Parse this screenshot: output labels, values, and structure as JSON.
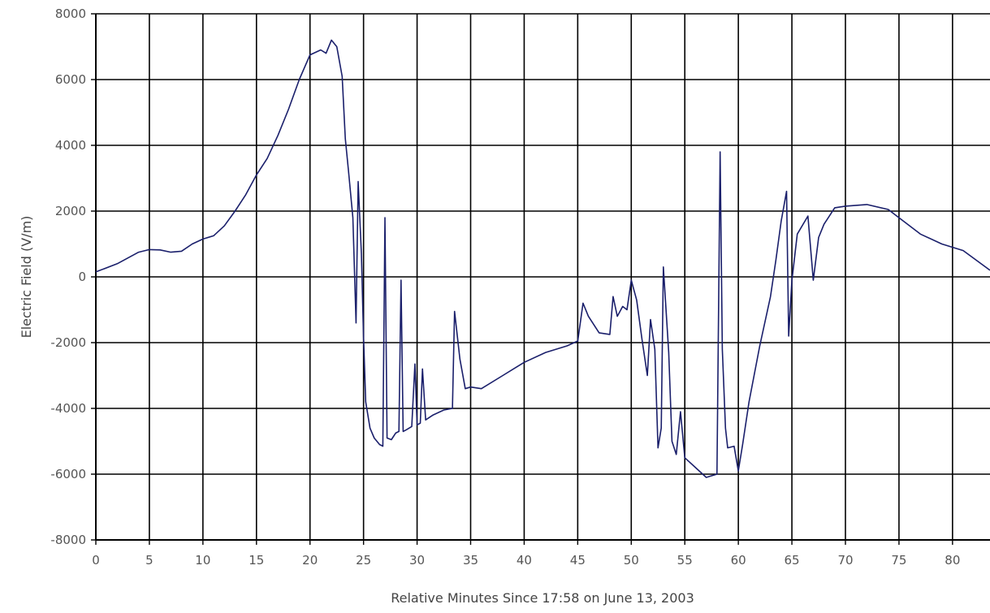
{
  "chart_data": {
    "type": "line",
    "title": "",
    "xlabel": "Relative Minutes Since 17:58 on June 13, 2003",
    "ylabel": "Electric Field (V/m)",
    "xlim": [
      0,
      83.5
    ],
    "ylim": [
      -8000,
      8000
    ],
    "x_ticks": [
      "0",
      "5",
      "10",
      "15",
      "20",
      "25",
      "30",
      "35",
      "40",
      "45",
      "50",
      "55",
      "60",
      "65",
      "70",
      "75",
      "80"
    ],
    "y_ticks": [
      "8000",
      "6000",
      "4000",
      "2000",
      "0",
      "-2000",
      "-4000",
      "-6000",
      "-8000"
    ],
    "grid": true,
    "line_color": "#1a1f6b",
    "series": [
      {
        "points": [
          [
            0,
            150
          ],
          [
            2,
            400
          ],
          [
            4,
            750
          ],
          [
            5,
            830
          ],
          [
            6,
            820
          ],
          [
            7,
            750
          ],
          [
            8,
            780
          ],
          [
            9,
            1000
          ],
          [
            10,
            1150
          ],
          [
            11,
            1250
          ],
          [
            12,
            1550
          ],
          [
            13,
            2000
          ],
          [
            14,
            2500
          ],
          [
            15,
            3100
          ],
          [
            16,
            3600
          ],
          [
            17,
            4300
          ],
          [
            18,
            5100
          ],
          [
            19,
            6000
          ],
          [
            20,
            6750
          ],
          [
            21,
            6900
          ],
          [
            21.5,
            6800
          ],
          [
            22,
            7200
          ],
          [
            22.5,
            7000
          ],
          [
            23,
            6100
          ],
          [
            23.3,
            4200
          ],
          [
            23.6,
            3200
          ],
          [
            24,
            1800
          ],
          [
            24.3,
            -1400
          ],
          [
            24.5,
            2900
          ],
          [
            24.8,
            700
          ],
          [
            25,
            -1800
          ],
          [
            25.2,
            -3800
          ],
          [
            25.6,
            -4600
          ],
          [
            26,
            -4900
          ],
          [
            26.5,
            -5100
          ],
          [
            26.8,
            -5150
          ],
          [
            27,
            1800
          ],
          [
            27.2,
            -4900
          ],
          [
            27.6,
            -4950
          ],
          [
            28,
            -4750
          ],
          [
            28.3,
            -4700
          ],
          [
            28.5,
            -100
          ],
          [
            28.7,
            -4700
          ],
          [
            29,
            -4650
          ],
          [
            29.5,
            -4550
          ],
          [
            29.8,
            -2650
          ],
          [
            30,
            -4500
          ],
          [
            30.3,
            -4450
          ],
          [
            30.5,
            -2800
          ],
          [
            30.8,
            -4350
          ],
          [
            31.5,
            -4200
          ],
          [
            32.5,
            -4050
          ],
          [
            33.3,
            -4000
          ],
          [
            33.5,
            -1050
          ],
          [
            34,
            -2500
          ],
          [
            34.5,
            -3400
          ],
          [
            35,
            -3350
          ],
          [
            36,
            -3400
          ],
          [
            38,
            -3000
          ],
          [
            40,
            -2600
          ],
          [
            42,
            -2300
          ],
          [
            44,
            -2100
          ],
          [
            45,
            -1950
          ],
          [
            45.5,
            -800
          ],
          [
            46,
            -1200
          ],
          [
            47,
            -1700
          ],
          [
            48,
            -1750
          ],
          [
            48.3,
            -600
          ],
          [
            48.7,
            -1200
          ],
          [
            49.2,
            -900
          ],
          [
            49.6,
            -1000
          ],
          [
            50,
            -100
          ],
          [
            50.5,
            -700
          ],
          [
            51,
            -1900
          ],
          [
            51.5,
            -3000
          ],
          [
            51.8,
            -1300
          ],
          [
            52.2,
            -2200
          ],
          [
            52.5,
            -5200
          ],
          [
            52.8,
            -4600
          ],
          [
            53,
            300
          ],
          [
            53.5,
            -2300
          ],
          [
            53.8,
            -5000
          ],
          [
            54.2,
            -5400
          ],
          [
            54.6,
            -4100
          ],
          [
            55,
            -5500
          ],
          [
            56,
            -5800
          ],
          [
            57,
            -6100
          ],
          [
            58,
            -6000
          ],
          [
            58.3,
            3800
          ],
          [
            58.5,
            -2200
          ],
          [
            58.8,
            -4600
          ],
          [
            59,
            -5200
          ],
          [
            59.6,
            -5150
          ],
          [
            60,
            -5900
          ],
          [
            60.4,
            -5100
          ],
          [
            61,
            -3800
          ],
          [
            62,
            -2100
          ],
          [
            63,
            -600
          ],
          [
            63.5,
            500
          ],
          [
            64,
            1700
          ],
          [
            64.5,
            2600
          ],
          [
            64.7,
            -1800
          ],
          [
            65,
            -100
          ],
          [
            65.5,
            1300
          ],
          [
            66.5,
            1850
          ],
          [
            67,
            -100
          ],
          [
            67.5,
            1200
          ],
          [
            68,
            1600
          ],
          [
            69,
            2100
          ],
          [
            70,
            2150
          ],
          [
            72,
            2200
          ],
          [
            74,
            2050
          ],
          [
            75,
            1800
          ],
          [
            77,
            1300
          ],
          [
            79,
            1000
          ],
          [
            81,
            800
          ],
          [
            83.5,
            200
          ]
        ]
      }
    ]
  }
}
